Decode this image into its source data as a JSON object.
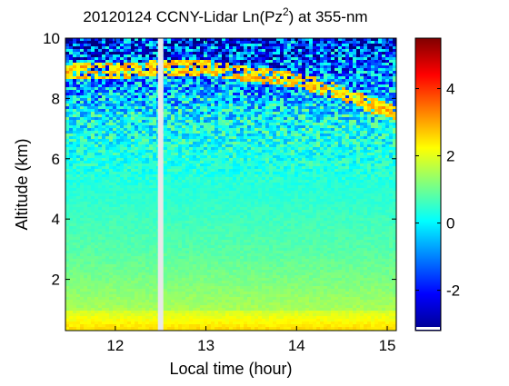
{
  "chart_data": {
    "type": "heatmap",
    "title": {
      "prefix": "20120124 CCNY-Lidar Ln(Pz",
      "superscript": "2",
      "suffix": ") at 355-nm"
    },
    "xlabel": "Local time (hour)",
    "ylabel": "Altitude (km)",
    "xlim": [
      11.45,
      15.1
    ],
    "ylim": [
      0.3,
      10
    ],
    "xticks": [
      12,
      13,
      14,
      15
    ],
    "xtick_labels": [
      "12",
      "13",
      "14",
      "15"
    ],
    "yticks": [
      2,
      4,
      6,
      8,
      10
    ],
    "ytick_labels": [
      "2",
      "4",
      "6",
      "8",
      "10"
    ],
    "data_gap": {
      "x_start": 12.47,
      "x_end": 12.53
    },
    "colorbar": {
      "colormap": "jet",
      "clim": [
        -3.2,
        5.5
      ],
      "ticks": [
        -2,
        0,
        2,
        4
      ],
      "tick_labels": [
        "-2",
        "0",
        "2",
        "4"
      ]
    },
    "profile": {
      "altitude_km": [
        0.3,
        1.0,
        2.0,
        3.0,
        4.0,
        5.0,
        6.0,
        7.0,
        7.6,
        8.2,
        9.0,
        9.5,
        10.0
      ],
      "value": [
        2.3,
        1.5,
        1.1,
        0.8,
        0.6,
        0.4,
        0.3,
        0.2,
        -0.1,
        -0.6,
        -1.2,
        -1.6,
        -2.0
      ]
    },
    "cloud_layer": {
      "time": [
        12.0,
        12.4,
        13.0,
        13.5,
        14.0,
        14.5,
        14.8,
        15.1
      ],
      "altitude_km": [
        8.9,
        9.0,
        9.0,
        8.8,
        8.6,
        8.2,
        7.8,
        7.5
      ],
      "value": 2.6
    },
    "colors": {
      "gap": "#e8e8e8",
      "axis": "#000000",
      "background": "#ffffff"
    }
  }
}
